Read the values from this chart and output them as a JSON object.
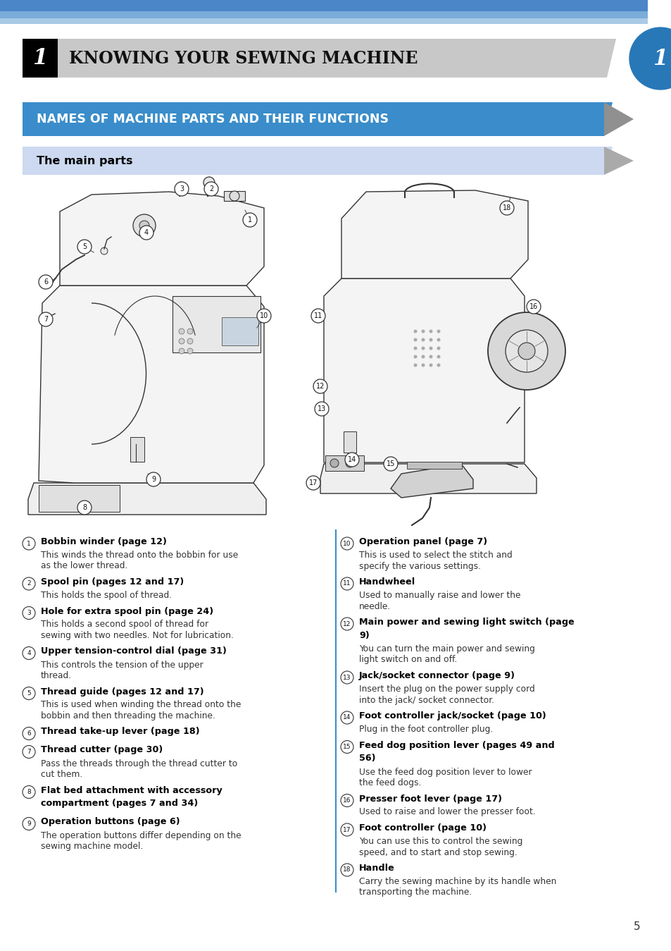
{
  "page_bg": "#ffffff",
  "chapter_title": "KNOWING YOUR SEWING MACHINE",
  "chapter_num": "1",
  "section_title": "NAMES OF MACHINE PARTS AND THEIR FUNCTIONS",
  "subsection_title": "The main parts",
  "side_circle_color": "#2878b8",
  "divider_color": "#3a8dca",
  "page_number": "5",
  "left_items": [
    {
      "num": 1,
      "title": "Bobbin winder (page 12)",
      "desc": "This winds the thread onto the bobbin for use as the lower thread."
    },
    {
      "num": 2,
      "title": "Spool pin (pages 12 and 17)",
      "desc": "This holds the spool of thread."
    },
    {
      "num": 3,
      "title": "Hole for extra spool pin (page 24)",
      "desc": "This holds a second spool of thread for sewing with two needles. Not for lubrication."
    },
    {
      "num": 4,
      "title": "Upper tension-control dial (page 31)",
      "desc": "This controls the tension of the upper thread."
    },
    {
      "num": 5,
      "title": "Thread guide (pages 12 and 17)",
      "desc": "This is used when winding the thread onto the bobbin and then threading the machine."
    },
    {
      "num": 6,
      "title": "Thread take-up lever (page 18)",
      "desc": ""
    },
    {
      "num": 7,
      "title": "Thread cutter (page 30)",
      "desc": " Pass the threads through the thread cutter to cut them."
    },
    {
      "num": 8,
      "title": "Flat bed attachment with accessory compartment (pages 7 and 34)",
      "desc": ""
    },
    {
      "num": 9,
      "title": "Operation buttons (page 6)",
      "desc": "The operation buttons differ depending on the sewing machine model."
    }
  ],
  "right_items": [
    {
      "num": 10,
      "title": "Operation panel (page 7)",
      "desc": "This is used to select the stitch and specify the various settings."
    },
    {
      "num": 11,
      "title": "Handwheel",
      "desc": "Used to manually raise and lower the needle."
    },
    {
      "num": 12,
      "title": "Main power and sewing light switch (page 9)",
      "desc": "You can turn the main power and sewing light switch on and off."
    },
    {
      "num": 13,
      "title": "Jack/socket connector (page 9)",
      "desc": "Insert the plug on the power supply cord into the jack/ socket connector."
    },
    {
      "num": 14,
      "title": "Foot controller jack/socket (page 10)",
      "desc": "Plug in the foot controller plug."
    },
    {
      "num": 15,
      "title": "Feed dog position lever (pages 49 and 56)",
      "desc": "Use the feed dog position lever to lower the feed dogs."
    },
    {
      "num": 16,
      "title": "Presser foot lever (page 17)",
      "desc": "Used to raise and lower the presser foot."
    },
    {
      "num": 17,
      "title": "Foot controller (page 10)",
      "desc": "You can use this to control the sewing speed, and to start and stop sewing."
    },
    {
      "num": 18,
      "title": "Handle",
      "desc": "Carry the sewing machine by its handle when transporting the machine."
    }
  ]
}
